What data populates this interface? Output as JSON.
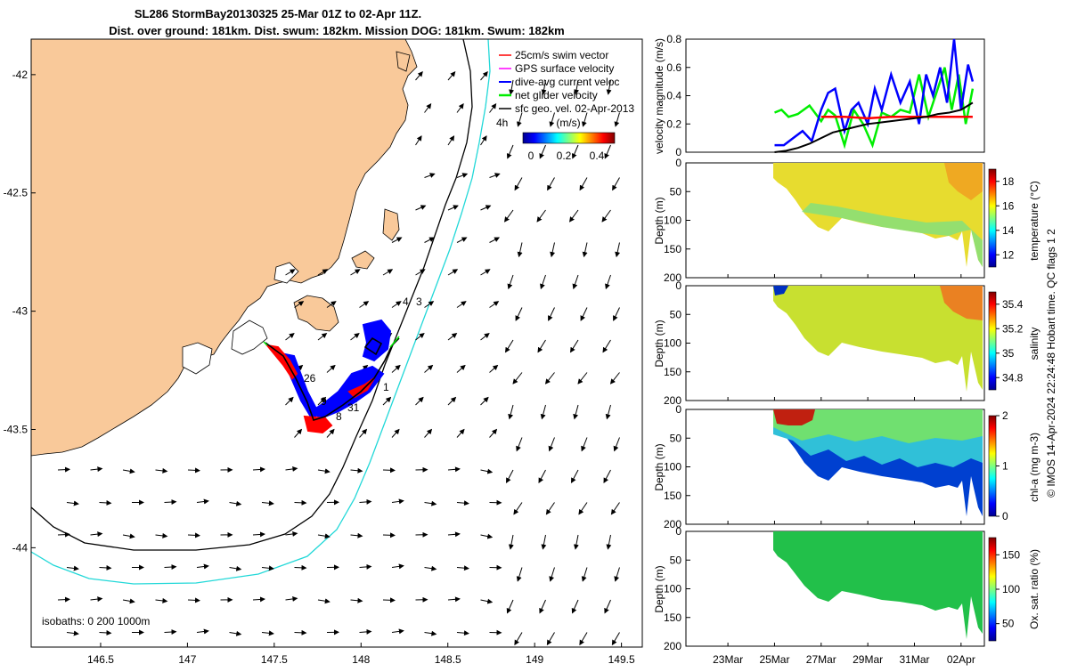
{
  "title": {
    "line1": "SL286 StormBay20130325 25-Mar 01Z to 02-Apr 11Z.",
    "line2": "Dist. over ground: 181km. Dist. swum: 182km. Mission DOG: 181km. Swum: 182km"
  },
  "colors": {
    "land": "#f9c99a",
    "isobath_200": "#000000",
    "isobath_1000": "#22d8d8",
    "swim_vector": "#ff0000",
    "gps_velocity": "#ff00ff",
    "dive_avg": "#0000ff",
    "net_glider": "#00ee00",
    "geo_velocity": "#000000"
  },
  "map": {
    "legend": [
      {
        "label": "25cm/s swim vector",
        "color": "#ff0000"
      },
      {
        "label": "GPS surface velocity",
        "color": "#ff00ff"
      },
      {
        "label": "dive-avg current veloc",
        "color": "#0000ff"
      },
      {
        "label": "net glider velocity",
        "color": "#00ee00"
      },
      {
        "label": "sfc geo. vel. 02-Apr-2013",
        "color": "#000000"
      }
    ],
    "colorbar_unit": "(m/s)",
    "colorbar_ticks": [
      "0",
      "0.2",
      "0.4"
    ],
    "isobath_label": "isobaths: 0   200  1000m",
    "track_labels": [
      "4h",
      "4",
      "3",
      "26",
      "1",
      "9",
      "31",
      "8"
    ]
  },
  "side_label": "© IMOS 14-Apr-2024 22:24:48 Hobart time. QC flags 1  2",
  "chart_data": [
    {
      "type": "line",
      "name": "map",
      "x_ticks": [
        146.5,
        147,
        147.5,
        148,
        148.5,
        149,
        149.5
      ],
      "y_ticks": [
        -42,
        -42.5,
        -43,
        -43.5,
        -44
      ],
      "xlim": [
        146.1,
        149.62
      ],
      "ylim": [
        -44.42,
        -41.85
      ]
    },
    {
      "type": "line",
      "name": "velocity",
      "ylabel": "velocity magnitude (m/s)",
      "ylim": [
        0,
        0.8
      ],
      "y_ticks": [
        0,
        0.2,
        0.4,
        0.6,
        0.8
      ],
      "x_ticks": [
        "23Mar",
        "25Mar",
        "27Mar",
        "29Mar",
        "31Mar",
        "02Apr"
      ],
      "series": [
        {
          "color": "#00ee00",
          "x": [
            25.0,
            25.3,
            25.6,
            26.0,
            26.5,
            27.0,
            27.3,
            27.6,
            28.0,
            28.4,
            28.8,
            29.2,
            29.6,
            30.0,
            30.4,
            30.8,
            31.2,
            31.6,
            32.0,
            32.3,
            32.6,
            32.9,
            33.2,
            33.5
          ],
          "y": [
            0.28,
            0.3,
            0.25,
            0.27,
            0.33,
            0.22,
            0.3,
            0.26,
            0.05,
            0.3,
            0.2,
            0.05,
            0.28,
            0.25,
            0.3,
            0.28,
            0.55,
            0.25,
            0.45,
            0.6,
            0.3,
            0.55,
            0.2,
            0.45
          ]
        },
        {
          "color": "#0000ff",
          "x": [
            25.0,
            25.4,
            25.8,
            26.2,
            26.6,
            27.0,
            27.3,
            27.6,
            28.0,
            28.3,
            28.6,
            29.0,
            29.3,
            29.6,
            30.0,
            30.4,
            30.8,
            31.2,
            31.5,
            31.8,
            32.1,
            32.4,
            32.7,
            33.0,
            33.3,
            33.5
          ],
          "y": [
            0.05,
            0.05,
            0.1,
            0.15,
            0.08,
            0.3,
            0.42,
            0.45,
            0.15,
            0.3,
            0.35,
            0.2,
            0.45,
            0.3,
            0.55,
            0.35,
            0.5,
            0.2,
            0.55,
            0.4,
            0.6,
            0.35,
            0.8,
            0.3,
            0.62,
            0.5
          ]
        },
        {
          "color": "#ff0000",
          "x": [
            27.0,
            28.0,
            29.0,
            30.0,
            31.0,
            32.0,
            33.0,
            33.5
          ],
          "y": [
            0.25,
            0.25,
            0.24,
            0.25,
            0.25,
            0.25,
            0.25,
            0.25
          ]
        },
        {
          "color": "#000000",
          "x": [
            25.0,
            25.5,
            26.0,
            26.5,
            27.0,
            27.5,
            28.0,
            28.5,
            29.0,
            29.5,
            30.0,
            30.5,
            31.0,
            31.5,
            32.0,
            32.5,
            33.0,
            33.5
          ],
          "y": [
            0.0,
            0.01,
            0.03,
            0.06,
            0.1,
            0.14,
            0.16,
            0.18,
            0.2,
            0.21,
            0.22,
            0.23,
            0.24,
            0.25,
            0.27,
            0.28,
            0.3,
            0.35
          ]
        }
      ]
    },
    {
      "type": "heatmap",
      "name": "temperature",
      "ylabel": "Depth (m)",
      "colorbar_label": "temperature (°C)",
      "colorbar_ticks": [
        12,
        14,
        16,
        18
      ],
      "clim": [
        11,
        19
      ],
      "ylim": [
        0,
        200
      ],
      "y_ticks": [
        0,
        50,
        100,
        150,
        200
      ],
      "x_ticks": [
        "23Mar",
        "25Mar",
        "27Mar",
        "29Mar",
        "31Mar",
        "02Apr"
      ]
    },
    {
      "type": "heatmap",
      "name": "salinity",
      "ylabel": "Depth (m)",
      "colorbar_label": "salinity",
      "colorbar_ticks": [
        34.8,
        35,
        35.2,
        35.4
      ],
      "clim": [
        34.7,
        35.5
      ],
      "ylim": [
        0,
        200
      ],
      "y_ticks": [
        0,
        50,
        100,
        150,
        200
      ],
      "x_ticks": [
        "23Mar",
        "25Mar",
        "27Mar",
        "29Mar",
        "31Mar",
        "02Apr"
      ]
    },
    {
      "type": "heatmap",
      "name": "chl-a",
      "ylabel": "Depth (m)",
      "colorbar_label": "chl-a (mg m-3)",
      "colorbar_ticks": [
        0,
        1,
        2
      ],
      "clim": [
        0,
        2
      ],
      "ylim": [
        0,
        200
      ],
      "y_ticks": [
        0,
        50,
        100,
        150,
        200
      ],
      "x_ticks": [
        "23Mar",
        "25Mar",
        "27Mar",
        "29Mar",
        "31Mar",
        "02Apr"
      ]
    },
    {
      "type": "heatmap",
      "name": "oxygen",
      "ylabel": "Depth (m)",
      "colorbar_label": "Ox. sat. ratio (%)",
      "colorbar_ticks": [
        50,
        100,
        150
      ],
      "clim": [
        25,
        175
      ],
      "ylim": [
        0,
        200
      ],
      "y_ticks": [
        0,
        50,
        100,
        150,
        200
      ],
      "x_ticks": [
        "23Mar",
        "25Mar",
        "27Mar",
        "29Mar",
        "31Mar",
        "02Apr"
      ],
      "x_tick_labels": [
        "23Mar",
        "25Mar",
        "27Mar",
        "29Mar",
        "31Mar",
        "02Apr"
      ]
    }
  ]
}
